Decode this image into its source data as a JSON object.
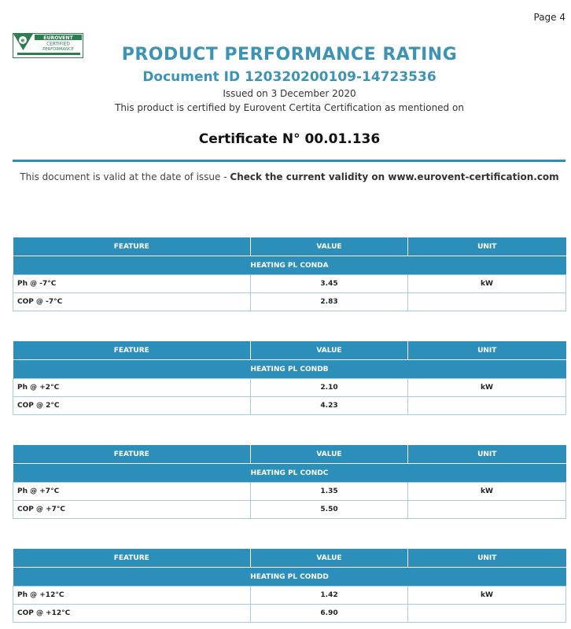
{
  "page": {
    "page_label": "Page 4"
  },
  "logo": {
    "line1": "EUROVENT",
    "line2": "CERTIFIED",
    "line3": "PERFORMANCE"
  },
  "header": {
    "title": "PRODUCT PERFORMANCE RATING",
    "document_id": "Document ID 120320200109-14723536",
    "issued": "Issued on  3 December 2020",
    "certified_by": "This product is certified by Eurovent Certita Certification as mentioned on",
    "certificate": "Certificate N° 00.01.136"
  },
  "validity": {
    "prefix": "This document is valid at the date of issue - ",
    "bold": "Check the current validity on www.eurovent-certification.com"
  },
  "columns": {
    "feature": "FEATURE",
    "value": "VALUE",
    "unit": "UNIT"
  },
  "tables": [
    {
      "group": "HEATING PL CONDA",
      "rows": [
        {
          "feature": "Ph @ -7°C",
          "value": "3.45",
          "unit": "kW"
        },
        {
          "feature": "COP @ -7°C",
          "value": "2.83",
          "unit": ""
        }
      ]
    },
    {
      "group": "HEATING PL CONDB",
      "rows": [
        {
          "feature": "Ph @ +2°C",
          "value": "2.10",
          "unit": "kW"
        },
        {
          "feature": "COP @ 2°C",
          "value": "4.23",
          "unit": ""
        }
      ]
    },
    {
      "group": "HEATING PL CONDC",
      "rows": [
        {
          "feature": "Ph @ +7°C",
          "value": "1.35",
          "unit": "kW"
        },
        {
          "feature": "COP @ +7°C",
          "value": "5.50",
          "unit": ""
        }
      ]
    },
    {
      "group": "HEATING PL CONDD",
      "rows": [
        {
          "feature": "Ph @ +12°C",
          "value": "1.42",
          "unit": "kW"
        },
        {
          "feature": "COP @ +12°C",
          "value": "6.90",
          "unit": ""
        }
      ]
    }
  ],
  "colors": {
    "accent": "#2b8fba",
    "title": "#3d93b5",
    "logo_green": "#2e7d4f"
  }
}
